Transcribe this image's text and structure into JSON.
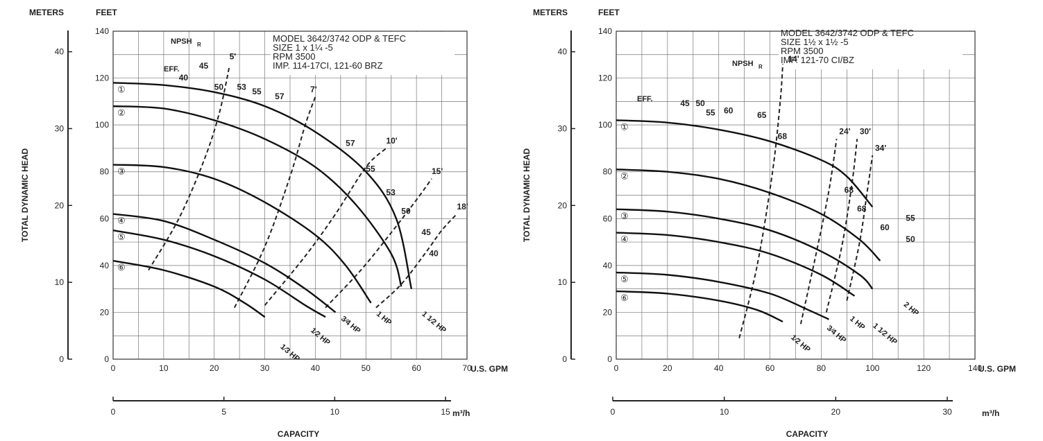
{
  "chart_data": [
    {
      "type": "line",
      "title": "",
      "model_info": [
        "MODEL 3642/3742 ODP & TEFC",
        "SIZE 1 x 1¼ -5",
        "RPM 3500",
        "IMP. 114-17CI, 121-60 BRZ"
      ],
      "npsh_label": "NPSH",
      "npsh_sub": "R",
      "eff_label": "EFF.",
      "unit_labels": {
        "meters": "METERS",
        "feet": "FEET",
        "gpm": "U.S. GPM",
        "m3h": "m³/h",
        "capacity": "CAPACITY",
        "tdh": "TOTAL DYNAMIC HEAD"
      },
      "xlim": [
        0,
        70
      ],
      "ylim": [
        0,
        140
      ],
      "x_ticks": [
        "0",
        "10",
        "20",
        "30",
        "40",
        "50",
        "60",
        "70"
      ],
      "y_ticks": [
        "0",
        "20",
        "40",
        "60",
        "80",
        "100",
        "120",
        "140"
      ],
      "meter_ticks": [
        "0",
        "10",
        "20",
        "30",
        "40"
      ],
      "m3h_ticks": [
        "0",
        "5",
        "10",
        "15"
      ],
      "impeller_curves": [
        {
          "marker": "①",
          "points": [
            [
              0,
              118
            ],
            [
              10,
              117
            ],
            [
              20,
              114
            ],
            [
              30,
              108
            ],
            [
              40,
              97
            ],
            [
              50,
              80
            ],
            [
              56,
              60
            ],
            [
              59,
              30
            ]
          ]
        },
        {
          "marker": "②",
          "points": [
            [
              0,
              108
            ],
            [
              10,
              107
            ],
            [
              20,
              102
            ],
            [
              30,
              94
            ],
            [
              40,
              82
            ],
            [
              48,
              66
            ],
            [
              55,
              45
            ],
            [
              57,
              31
            ]
          ]
        },
        {
          "marker": "③",
          "points": [
            [
              0,
              83
            ],
            [
              10,
              82
            ],
            [
              20,
              77
            ],
            [
              30,
              67
            ],
            [
              40,
              53
            ],
            [
              46,
              40
            ],
            [
              51,
              24
            ]
          ]
        },
        {
          "marker": "④",
          "points": [
            [
              0,
              62
            ],
            [
              10,
              59
            ],
            [
              20,
              51
            ],
            [
              30,
              41
            ],
            [
              38,
              30
            ],
            [
              44,
              20
            ]
          ]
        },
        {
          "marker": "⑤",
          "points": [
            [
              0,
              55
            ],
            [
              10,
              51
            ],
            [
              20,
              44
            ],
            [
              30,
              34
            ],
            [
              38,
              23
            ],
            [
              42,
              18
            ]
          ]
        },
        {
          "marker": "⑥",
          "points": [
            [
              0,
              42
            ],
            [
              10,
              38
            ],
            [
              20,
              31
            ],
            [
              26,
              24
            ],
            [
              30,
              18
            ]
          ]
        }
      ],
      "efficiency_labels": [
        {
          "text": "40",
          "x": 13,
          "y": 119
        },
        {
          "text": "45",
          "x": 17,
          "y": 124
        },
        {
          "text": "50",
          "x": 20,
          "y": 115
        },
        {
          "text": "53",
          "x": 24.5,
          "y": 115
        },
        {
          "text": "55",
          "x": 27.5,
          "y": 113
        },
        {
          "text": "57",
          "x": 32,
          "y": 111
        },
        {
          "text": "57",
          "x": 46,
          "y": 91
        },
        {
          "text": "55",
          "x": 50,
          "y": 80
        },
        {
          "text": "53",
          "x": 54,
          "y": 70
        },
        {
          "text": "50",
          "x": 57,
          "y": 62
        },
        {
          "text": "45",
          "x": 61,
          "y": 53
        },
        {
          "text": "40",
          "x": 62.5,
          "y": 44
        }
      ],
      "npsh_curves": [
        {
          "label": "5'",
          "label_x": 23,
          "label_y": 128,
          "points": [
            [
              7,
              38
            ],
            [
              13,
              60
            ],
            [
              18,
              85
            ],
            [
              21,
              105
            ],
            [
              23,
              125
            ]
          ]
        },
        {
          "label": "7'",
          "label_x": 39,
          "label_y": 114,
          "points": [
            [
              24,
              22
            ],
            [
              30,
              48
            ],
            [
              35,
              78
            ],
            [
              38,
              100
            ],
            [
              40,
              112
            ]
          ]
        },
        {
          "label": "10'",
          "label_x": 54,
          "label_y": 92,
          "points": [
            [
              30,
              23
            ],
            [
              38,
              44
            ],
            [
              44,
              62
            ],
            [
              50,
              82
            ],
            [
              54,
              90
            ]
          ]
        },
        {
          "label": "15'",
          "label_x": 63,
          "label_y": 79,
          "points": [
            [
              42,
              22
            ],
            [
              49,
              38
            ],
            [
              55,
              54
            ],
            [
              60,
              68
            ],
            [
              63,
              77
            ]
          ]
        },
        {
          "label": "18'",
          "label_x": 68,
          "label_y": 64,
          "points": [
            [
              52,
              22
            ],
            [
              57,
              32
            ],
            [
              62,
              46
            ],
            [
              65,
              55
            ],
            [
              68,
              62
            ]
          ]
        }
      ],
      "hp_labels": [
        {
          "text": "1⁄3 HP",
          "x": 33,
          "y": 5
        },
        {
          "text": "1⁄2 HP",
          "x": 39,
          "y": 12
        },
        {
          "text": "3⁄4 HP",
          "x": 45,
          "y": 17
        },
        {
          "text": "1 HP",
          "x": 52,
          "y": 19
        },
        {
          "text": "1 1⁄2 HP",
          "x": 61,
          "y": 19
        }
      ]
    },
    {
      "type": "line",
      "title": "",
      "model_info": [
        "MODEL 3642/3742 ODP & TEFC",
        "SIZE 1½ x 1½ -5",
        "RPM 3500",
        "IMP. 121-70 CI/BZ"
      ],
      "npsh_label": "NPSH",
      "npsh_sub": "R",
      "eff_label": "EFF.",
      "unit_labels": {
        "meters": "METERS",
        "feet": "FEET",
        "gpm": "U.S. GPM",
        "m3h": "m³/h",
        "capacity": "CAPACITY",
        "tdh": "TOTAL DYNAMIC HEAD"
      },
      "xlim": [
        0,
        140
      ],
      "ylim": [
        0,
        140
      ],
      "x_ticks": [
        "0",
        "20",
        "40",
        "60",
        "80",
        "100",
        "120",
        "140"
      ],
      "y_ticks": [
        "0",
        "20",
        "40",
        "60",
        "80",
        "100",
        "120",
        "140"
      ],
      "meter_ticks": [
        "0",
        "10",
        "20",
        "30",
        "40"
      ],
      "m3h_ticks": [
        "0",
        "10",
        "20",
        "30"
      ],
      "impeller_curves": [
        {
          "marker": "①",
          "points": [
            [
              0,
              102
            ],
            [
              20,
              101
            ],
            [
              40,
              98
            ],
            [
              60,
              93
            ],
            [
              80,
              85
            ],
            [
              90,
              78
            ],
            [
              100,
              65
            ]
          ]
        },
        {
          "marker": "②",
          "points": [
            [
              0,
              81
            ],
            [
              20,
              80
            ],
            [
              40,
              77
            ],
            [
              60,
              71
            ],
            [
              80,
              62
            ],
            [
              95,
              51
            ],
            [
              103,
              42
            ]
          ]
        },
        {
          "marker": "③",
          "points": [
            [
              0,
              64
            ],
            [
              20,
              63
            ],
            [
              40,
              60
            ],
            [
              60,
              55
            ],
            [
              80,
              46
            ],
            [
              95,
              36
            ],
            [
              100,
              30
            ]
          ]
        },
        {
          "marker": "④",
          "points": [
            [
              0,
              54
            ],
            [
              20,
              53
            ],
            [
              40,
              50
            ],
            [
              60,
              45
            ],
            [
              80,
              36
            ],
            [
              93,
              27
            ]
          ]
        },
        {
          "marker": "⑤",
          "points": [
            [
              0,
              37
            ],
            [
              20,
              36
            ],
            [
              40,
              33
            ],
            [
              60,
              28
            ],
            [
              75,
              21
            ],
            [
              83,
              17
            ]
          ]
        },
        {
          "marker": "⑥",
          "points": [
            [
              0,
              29
            ],
            [
              20,
              28
            ],
            [
              40,
              25
            ],
            [
              55,
              21
            ],
            [
              65,
              16
            ]
          ]
        }
      ],
      "efficiency_labels": [
        {
          "text": "45",
          "x": 25,
          "y": 108
        },
        {
          "text": "50",
          "x": 31,
          "y": 108
        },
        {
          "text": "55",
          "x": 35,
          "y": 104
        },
        {
          "text": "60",
          "x": 42,
          "y": 105
        },
        {
          "text": "65",
          "x": 55,
          "y": 103
        },
        {
          "text": "68",
          "x": 63,
          "y": 94
        },
        {
          "text": "68",
          "x": 89,
          "y": 71
        },
        {
          "text": "68",
          "x": 94,
          "y": 63
        },
        {
          "text": "60",
          "x": 103,
          "y": 55
        },
        {
          "text": "55",
          "x": 113,
          "y": 59
        },
        {
          "text": "50",
          "x": 113,
          "y": 50
        }
      ],
      "npsh_curves": [
        {
          "label": "14'",
          "label_x": 67,
          "label_y": 127,
          "points": [
            [
              48,
              9
            ],
            [
              55,
              40
            ],
            [
              61,
              80
            ],
            [
              64,
              110
            ],
            [
              65,
              126
            ]
          ]
        },
        {
          "label": "24'",
          "label_x": 87,
          "label_y": 96,
          "points": [
            [
              72,
              15
            ],
            [
              78,
              45
            ],
            [
              83,
              72
            ],
            [
              86,
              94
            ]
          ]
        },
        {
          "label": "30'",
          "label_x": 95,
          "label_y": 96,
          "points": [
            [
              82,
              20
            ],
            [
              88,
              48
            ],
            [
              92,
              75
            ],
            [
              94,
              94
            ]
          ]
        },
        {
          "label": "34'",
          "label_x": 101,
          "label_y": 89,
          "points": [
            [
              90,
              25
            ],
            [
              95,
              50
            ],
            [
              98,
              72
            ],
            [
              100,
              87
            ]
          ]
        }
      ],
      "hp_labels": [
        {
          "text": "1⁄2 HP",
          "x": 68,
          "y": 9
        },
        {
          "text": "3⁄4 HP",
          "x": 82,
          "y": 13
        },
        {
          "text": "1 HP",
          "x": 91,
          "y": 17
        },
        {
          "text": "1 1⁄2 HP",
          "x": 100,
          "y": 14
        },
        {
          "text": "2 HP",
          "x": 112,
          "y": 23
        }
      ]
    }
  ]
}
